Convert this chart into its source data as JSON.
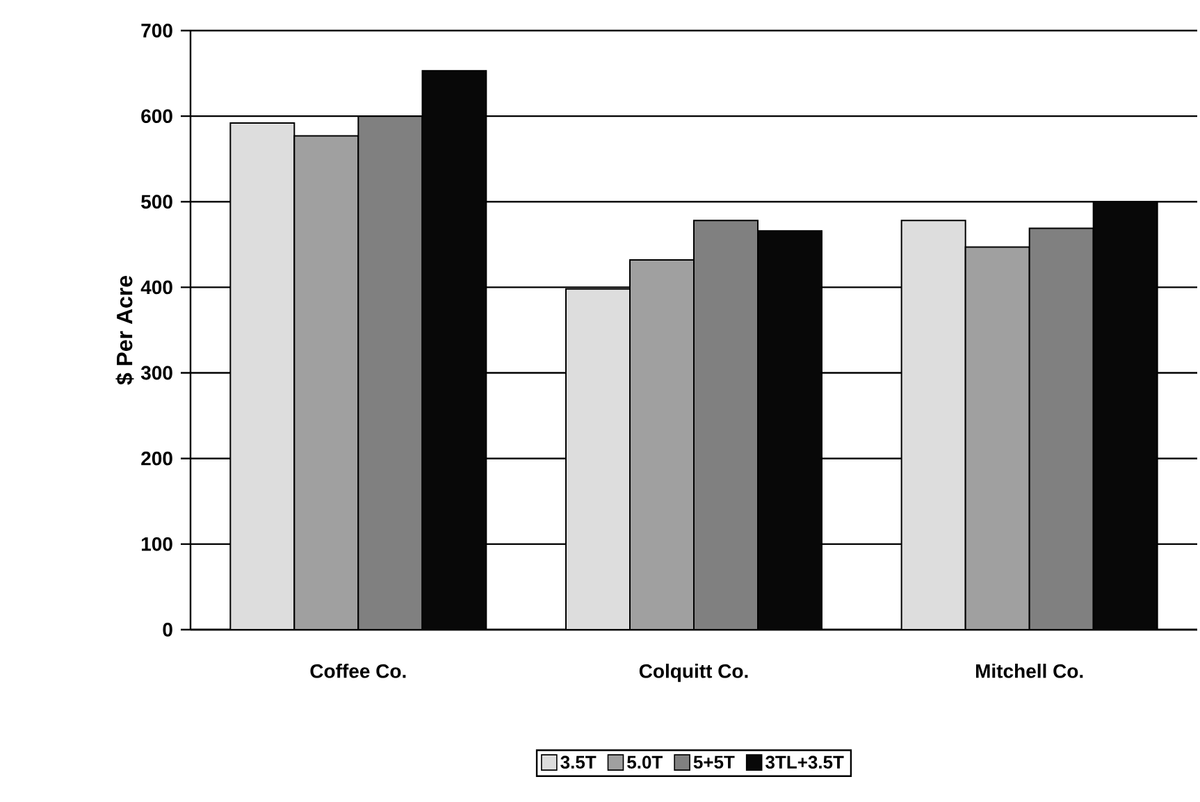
{
  "chart_data": {
    "type": "bar",
    "ylabel": "$ Per Acre",
    "categories": [
      "Coffee Co.",
      "Colquitt Co.",
      "Mitchell Co."
    ],
    "series": [
      {
        "name": "3.5T",
        "color": "#dddddd",
        "values": [
          592,
          398,
          478
        ]
      },
      {
        "name": "5.0T",
        "color": "#a0a0a0",
        "values": [
          577,
          432,
          447
        ]
      },
      {
        "name": "5+5T",
        "color": "#808080",
        "values": [
          600,
          478,
          469
        ]
      },
      {
        "name": "3TL+3.5T",
        "color": "#080808",
        "values": [
          653,
          466,
          500
        ]
      }
    ],
    "ylim": [
      0,
      700
    ],
    "yticks": [
      0,
      100,
      200,
      300,
      400,
      500,
      600,
      700
    ],
    "grid": "y",
    "legend": "bottom"
  }
}
